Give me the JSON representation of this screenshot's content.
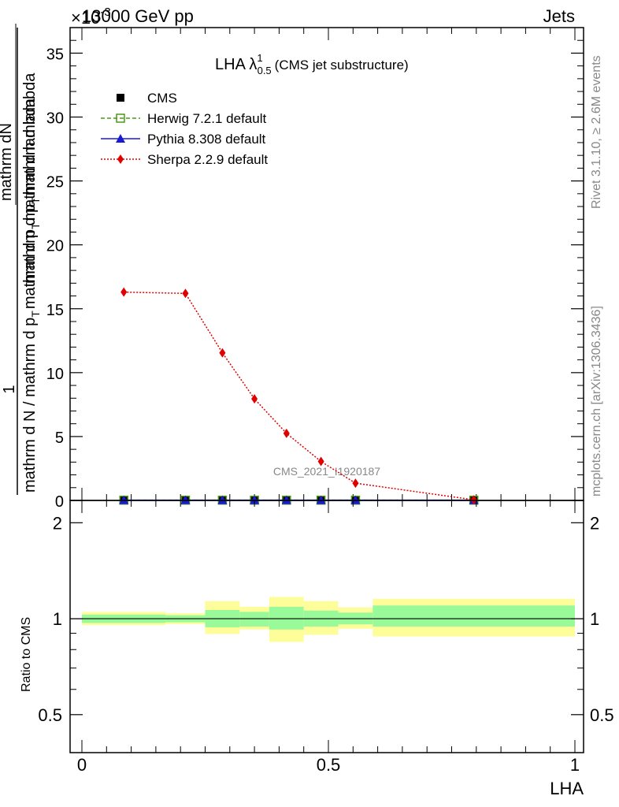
{
  "header": {
    "left": "13000 GeV pp",
    "right": "Jets",
    "exponent_marker": "×10",
    "exponent_power": "-3"
  },
  "side_labels": {
    "rivet": "Rivet 3.1.10, ≥ 2.6M events",
    "mcplots": "mcplots.cern.ch [arXiv:1306.3436]"
  },
  "analysis_id": "CMS_2021_I1920187",
  "colors": {
    "herwig": "#4a9a14",
    "pythia": "#1a1ad0",
    "sherpa": "#e00000",
    "band_inner": "#98fa98",
    "band_outer": "#fdfd9a"
  },
  "chart_data": [
    {
      "type": "line",
      "title_main": "LHA λ",
      "title_sup": "1",
      "title_sub": "0.5",
      "title_suffix": "(CMS jet substructure)",
      "ylabel_upper_num": "mathrm d",
      "ylabel_upper_den": "1",
      "ylabel_lower": "mathrm d N / mathrm d p",
      "ylabel_lower_sub": "T",
      "ylabel_lower2": "mathrm d p",
      "ylabel_lower2_sub": "T",
      "ylabel_lower3": "mathrm d lambda",
      "ylabel_num": "mathrm dN",
      "ylabel_numden": "mathrm d p",
      "ylabel_numden_sub": "T",
      "ylabel_numden2": "mathrm d lambda",
      "xlim": [
        0,
        1
      ],
      "ylim": [
        0,
        37
      ],
      "y_ticks": [
        0,
        5,
        10,
        15,
        20,
        25,
        30,
        35
      ],
      "y_tick_labels": [
        "0",
        "5",
        "10",
        "15",
        "20",
        "25",
        "30",
        "35"
      ],
      "legend_position": "top-left",
      "series": [
        {
          "name": "CMS",
          "marker": "square",
          "x": [
            0.085,
            0.21,
            0.285,
            0.35,
            0.415,
            0.485,
            0.555,
            0.795
          ],
          "y": [
            0.02,
            0.02,
            0.02,
            0.02,
            0.02,
            0.02,
            0.02,
            0.02
          ]
        },
        {
          "name": "Herwig 7.2.1 default",
          "marker": "open-square",
          "style": "dashed",
          "x": [
            0.085,
            0.21,
            0.285,
            0.35,
            0.415,
            0.485,
            0.555,
            0.795
          ],
          "y": [
            0.02,
            0.02,
            0.02,
            0.02,
            0.02,
            0.02,
            0.02,
            0.02
          ]
        },
        {
          "name": "Pythia 8.308 default",
          "marker": "triangle",
          "style": "solid",
          "x": [
            0.085,
            0.21,
            0.285,
            0.35,
            0.415,
            0.485,
            0.555,
            0.795
          ],
          "y": [
            0.02,
            0.02,
            0.02,
            0.02,
            0.02,
            0.02,
            0.02,
            0.02
          ]
        },
        {
          "name": "Sherpa 2.2.9 default",
          "marker": "diamond",
          "style": "dotted",
          "x": [
            0.085,
            0.21,
            0.285,
            0.35,
            0.415,
            0.485,
            0.555,
            0.795
          ],
          "y": [
            16.3,
            16.2,
            11.55,
            7.95,
            5.25,
            3.05,
            1.35,
            0.05
          ]
        }
      ]
    },
    {
      "type": "area",
      "ylabel": "Ratio to CMS",
      "xlabel": "LHA",
      "xlim": [
        0,
        1
      ],
      "ylim": [
        0.38,
        2.35
      ],
      "y_scale": "log",
      "y_ticks": [
        0.5,
        1,
        2
      ],
      "y_tick_labels": [
        "0.5",
        "1",
        "2"
      ],
      "x_ticks": [
        0,
        0.5,
        1
      ],
      "x_tick_labels": [
        "0",
        "0.5",
        "1"
      ],
      "reference": 1,
      "bins": [
        {
          "lo": 0.0,
          "hi": 0.17,
          "inner": [
            0.97,
            1.03
          ],
          "outer": [
            0.955,
            1.05
          ]
        },
        {
          "lo": 0.17,
          "hi": 0.25,
          "inner": [
            0.975,
            1.025
          ],
          "outer": [
            0.962,
            1.04
          ]
        },
        {
          "lo": 0.25,
          "hi": 0.32,
          "inner": [
            0.94,
            1.065
          ],
          "outer": [
            0.895,
            1.135
          ]
        },
        {
          "lo": 0.32,
          "hi": 0.38,
          "inner": [
            0.945,
            1.05
          ],
          "outer": [
            0.925,
            1.09
          ]
        },
        {
          "lo": 0.38,
          "hi": 0.45,
          "inner": [
            0.925,
            1.09
          ],
          "outer": [
            0.845,
            1.17
          ]
        },
        {
          "lo": 0.45,
          "hi": 0.52,
          "inner": [
            0.945,
            1.06
          ],
          "outer": [
            0.89,
            1.135
          ]
        },
        {
          "lo": 0.52,
          "hi": 0.59,
          "inner": [
            0.96,
            1.045
          ],
          "outer": [
            0.93,
            1.085
          ]
        },
        {
          "lo": 0.59,
          "hi": 1.0,
          "inner": [
            0.945,
            1.1
          ],
          "outer": [
            0.88,
            1.155
          ]
        }
      ]
    }
  ]
}
